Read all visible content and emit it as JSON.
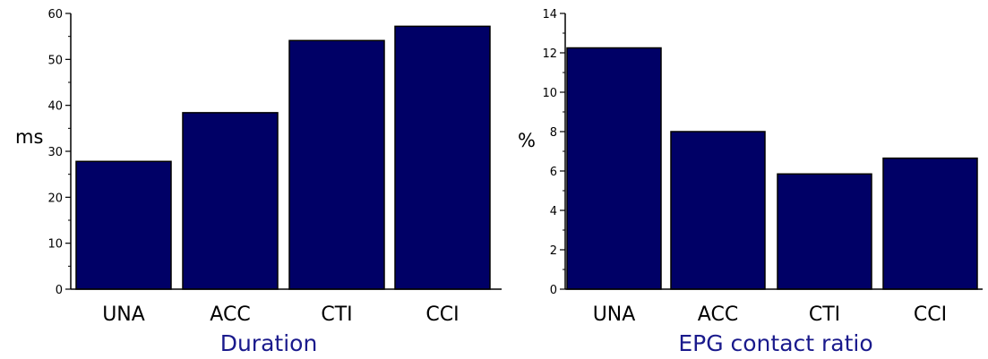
{
  "bar_color": "#000066",
  "title_color": "#1a1a8c",
  "chart_data": [
    {
      "type": "bar",
      "title": "Duration",
      "ylabel": "ms",
      "categories": [
        "UNA",
        "ACC",
        "CTI",
        "CCI"
      ],
      "values": [
        27.8,
        38.4,
        54.1,
        57.2
      ],
      "ylim": [
        0,
        60
      ],
      "yticks": [
        0,
        10,
        20,
        30,
        40,
        50,
        60
      ],
      "grid": false
    },
    {
      "type": "bar",
      "title": "EPG contact ratio",
      "ylabel": "%",
      "categories": [
        "UNA",
        "ACC",
        "CTI",
        "CCI"
      ],
      "values": [
        12.25,
        8.0,
        5.85,
        6.65
      ],
      "ylim": [
        0,
        14
      ],
      "yticks": [
        0,
        2,
        4,
        6,
        8,
        10,
        12,
        14
      ],
      "grid": false
    }
  ]
}
